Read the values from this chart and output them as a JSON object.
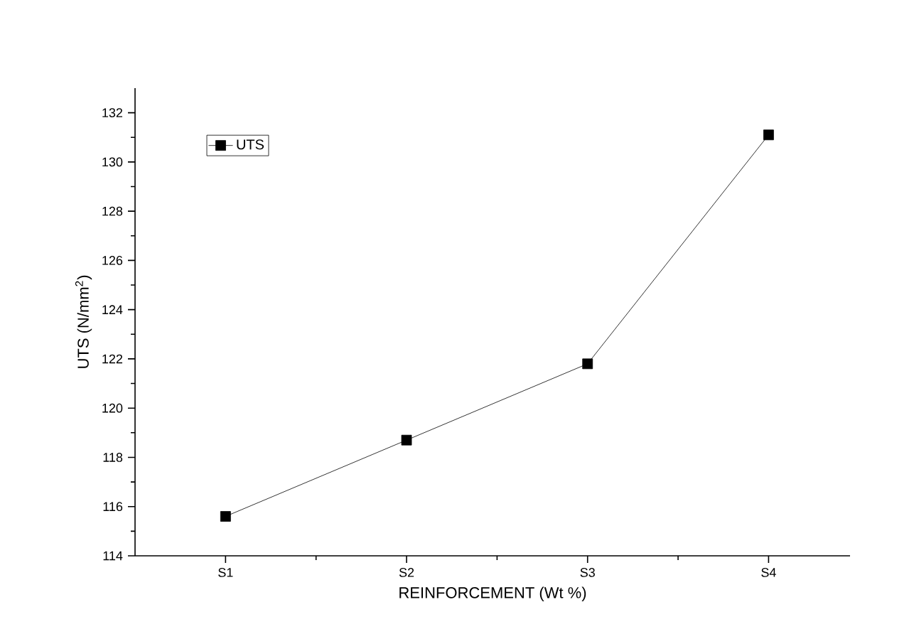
{
  "chart_data": {
    "type": "line",
    "xlabel": "REINFORCEMENT (Wt %)",
    "ylabel": "UTS (N/mm$^{2}$)",
    "categories": [
      "S1",
      "S2",
      "S3",
      "S4"
    ],
    "series": [
      {
        "name": "UTS",
        "color": "#000000",
        "values": [
          115.6,
          118.7,
          121.8,
          131.1
        ]
      }
    ],
    "ylim": [
      114,
      133
    ],
    "yticks": [
      114,
      116,
      118,
      120,
      122,
      124,
      126,
      128,
      130,
      132
    ],
    "legend": "top left",
    "marker": "square",
    "line_style": "solid",
    "grid": false
  }
}
